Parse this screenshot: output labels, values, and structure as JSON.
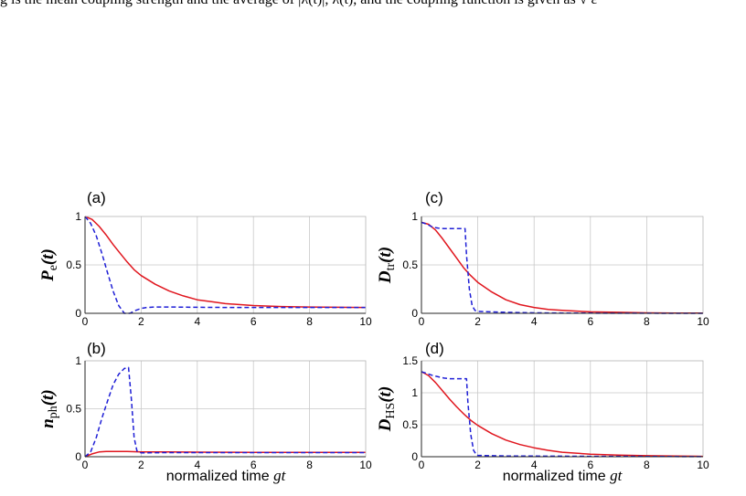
{
  "header": {
    "text": "g is the mean coupling strength and the average of |λ(t)|, λ(t), and the coupling function is given as  √ ε"
  },
  "xlabel": {
    "text": "normalized time",
    "var": "gt"
  },
  "chart_data": [
    {
      "type": "line",
      "panel": "(a)",
      "ylabel": {
        "main": "P",
        "sub": "e",
        "suffix": "(t)"
      },
      "xlim": [
        0,
        10
      ],
      "ylim": [
        0,
        1
      ],
      "xticks": [
        0,
        2,
        4,
        6,
        8,
        10
      ],
      "yticks": [
        0,
        0.5,
        1
      ],
      "ytick_labels": [
        "0",
        "0.5",
        "1"
      ],
      "grid": true,
      "series": [
        {
          "color": "#e0161e",
          "dash": false,
          "x": [
            0,
            0.25,
            0.5,
            0.75,
            1,
            1.25,
            1.5,
            1.75,
            2,
            2.5,
            3,
            3.5,
            4,
            4.5,
            5,
            6,
            7,
            8,
            9,
            10
          ],
          "y": [
            1.0,
            0.97,
            0.9,
            0.81,
            0.71,
            0.62,
            0.53,
            0.45,
            0.39,
            0.3,
            0.23,
            0.18,
            0.14,
            0.12,
            0.1,
            0.08,
            0.07,
            0.065,
            0.062,
            0.06
          ]
        },
        {
          "color": "#1f1fd6",
          "dash": true,
          "x": [
            0,
            0.2,
            0.4,
            0.6,
            0.8,
            1.0,
            1.2,
            1.4,
            1.6,
            1.8,
            2.0,
            2.2,
            2.5,
            3,
            4,
            5,
            6,
            7,
            8,
            9,
            10
          ],
          "y": [
            1.0,
            0.93,
            0.8,
            0.62,
            0.42,
            0.23,
            0.08,
            0.0,
            0.0,
            0.03,
            0.05,
            0.06,
            0.065,
            0.065,
            0.062,
            0.06,
            0.06,
            0.06,
            0.06,
            0.06,
            0.06
          ]
        }
      ]
    },
    {
      "type": "line",
      "panel": "(c)",
      "ylabel": {
        "main": "D",
        "sub": "tr",
        "suffix": "(t)"
      },
      "xlim": [
        0,
        10
      ],
      "ylim": [
        0,
        1
      ],
      "xticks": [
        0,
        2,
        4,
        6,
        8,
        10
      ],
      "yticks": [
        0,
        0.5,
        1
      ],
      "ytick_labels": [
        "0",
        "0.5",
        "1"
      ],
      "grid": true,
      "series": [
        {
          "color": "#e0161e",
          "dash": false,
          "x": [
            0,
            0.25,
            0.5,
            0.75,
            1,
            1.25,
            1.5,
            1.75,
            2,
            2.5,
            3,
            3.5,
            4,
            4.5,
            5,
            6,
            7,
            8,
            9,
            10
          ],
          "y": [
            0.94,
            0.92,
            0.86,
            0.77,
            0.67,
            0.57,
            0.47,
            0.39,
            0.32,
            0.22,
            0.14,
            0.09,
            0.06,
            0.04,
            0.03,
            0.015,
            0.01,
            0.005,
            0.003,
            0.002
          ]
        },
        {
          "color": "#1f1fd6",
          "dash": true,
          "x": [
            0,
            0.2,
            0.4,
            0.6,
            0.8,
            1.0,
            1.2,
            1.4,
            1.55,
            1.6,
            1.7,
            1.8,
            1.9,
            2.0,
            2.5,
            3,
            4,
            5,
            6,
            7,
            8,
            9,
            10
          ],
          "y": [
            0.94,
            0.92,
            0.89,
            0.88,
            0.875,
            0.875,
            0.875,
            0.875,
            0.875,
            0.6,
            0.25,
            0.08,
            0.03,
            0.02,
            0.015,
            0.01,
            0.005,
            0.003,
            0.002,
            0.001,
            0.001,
            0.0,
            0.0
          ]
        }
      ]
    },
    {
      "type": "line",
      "panel": "(b)",
      "ylabel": {
        "main": "n",
        "sub": "ph",
        "suffix": "(t)"
      },
      "xlim": [
        0,
        10
      ],
      "ylim": [
        0,
        1
      ],
      "xticks": [
        0,
        2,
        4,
        6,
        8,
        10
      ],
      "yticks": [
        0,
        0.5,
        1
      ],
      "ytick_labels": [
        "0",
        "0.5",
        "1"
      ],
      "grid": true,
      "series": [
        {
          "color": "#e0161e",
          "dash": false,
          "x": [
            0,
            0.25,
            0.5,
            0.75,
            1,
            1.5,
            2,
            2.5,
            3,
            4,
            5,
            6,
            7,
            8,
            9,
            10
          ],
          "y": [
            0,
            0.03,
            0.05,
            0.055,
            0.055,
            0.055,
            0.05,
            0.05,
            0.05,
            0.048,
            0.047,
            0.046,
            0.046,
            0.046,
            0.046,
            0.046
          ]
        },
        {
          "color": "#1f1fd6",
          "dash": true,
          "x": [
            0,
            0.2,
            0.4,
            0.6,
            0.8,
            1.0,
            1.2,
            1.4,
            1.55,
            1.65,
            1.75,
            1.85,
            2.0,
            2.5,
            3,
            4,
            5,
            6,
            7,
            8,
            9,
            10
          ],
          "y": [
            0,
            0.05,
            0.2,
            0.4,
            0.58,
            0.75,
            0.86,
            0.92,
            0.93,
            0.6,
            0.2,
            0.06,
            0.04,
            0.042,
            0.043,
            0.043,
            0.043,
            0.043,
            0.043,
            0.043,
            0.043,
            0.043
          ]
        }
      ]
    },
    {
      "type": "line",
      "panel": "(d)",
      "ylabel": {
        "main": "D",
        "sub": "HS",
        "suffix": "(t)"
      },
      "xlim": [
        0,
        10
      ],
      "ylim": [
        0,
        1.5
      ],
      "xticks": [
        0,
        2,
        4,
        6,
        8,
        10
      ],
      "yticks": [
        0,
        0.5,
        1,
        1.5
      ],
      "ytick_labels": [
        "0",
        "0.5",
        "1",
        "1.5"
      ],
      "grid": true,
      "series": [
        {
          "color": "#e0161e",
          "dash": false,
          "x": [
            0,
            0.25,
            0.5,
            0.75,
            1,
            1.25,
            1.5,
            1.75,
            2,
            2.5,
            3,
            3.5,
            4,
            4.5,
            5,
            6,
            7,
            8,
            9,
            10
          ],
          "y": [
            1.33,
            1.27,
            1.16,
            1.03,
            0.9,
            0.78,
            0.67,
            0.57,
            0.49,
            0.36,
            0.26,
            0.19,
            0.14,
            0.1,
            0.07,
            0.04,
            0.025,
            0.015,
            0.01,
            0.005
          ]
        },
        {
          "color": "#1f1fd6",
          "dash": true,
          "x": [
            0,
            0.2,
            0.4,
            0.6,
            0.8,
            1.0,
            1.2,
            1.4,
            1.6,
            1.65,
            1.75,
            1.85,
            1.95,
            2.0,
            2.5,
            3,
            4,
            5,
            6,
            7,
            8,
            9,
            10
          ],
          "y": [
            1.33,
            1.3,
            1.27,
            1.25,
            1.23,
            1.22,
            1.22,
            1.22,
            1.22,
            0.85,
            0.35,
            0.1,
            0.03,
            0.02,
            0.015,
            0.012,
            0.01,
            0.008,
            0.006,
            0.005,
            0.004,
            0.003,
            0.002
          ]
        }
      ]
    }
  ]
}
